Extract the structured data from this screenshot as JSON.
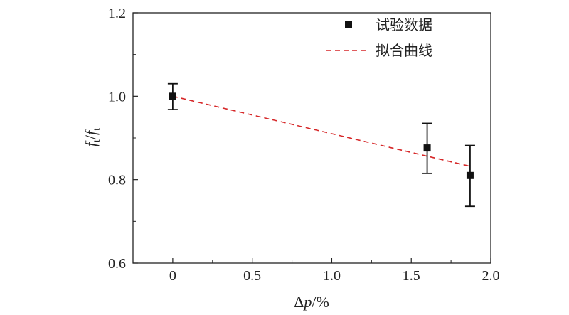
{
  "chart_data": {
    "type": "scatter",
    "xlabel": {
      "main": "Δ",
      "italic": "p",
      "tail": "/%"
    },
    "ylabel": {
      "f1": "f",
      "sub1": "t",
      "slash": "/",
      "f2": "f",
      "sub2": "t",
      "sup2": "r"
    },
    "xlim": [
      -0.25,
      2.0
    ],
    "ylim": [
      0.6,
      1.2
    ],
    "xticks": [
      0,
      0.5,
      1.0,
      1.5,
      2.0
    ],
    "xtick_labels": [
      "0",
      "0.5",
      "1.0",
      "1.5",
      "2.0"
    ],
    "yticks": [
      0.6,
      0.8,
      1.0,
      1.2
    ],
    "ytick_labels": [
      "0.6",
      "0.8",
      "1.0",
      "1.2"
    ],
    "legend_position": "top-right",
    "series": [
      {
        "name": "试验数据",
        "kind": "points-with-error-bars",
        "marker": "square",
        "color": "#111111",
        "points": [
          {
            "x": 0,
            "y": 1.0,
            "err_low": 0.968,
            "err_high": 1.03
          },
          {
            "x": 1.6,
            "y": 0.876,
            "err_low": 0.815,
            "err_high": 0.935
          },
          {
            "x": 1.87,
            "y": 0.81,
            "err_low": 0.736,
            "err_high": 0.882
          }
        ]
      },
      {
        "name": "拟合曲线",
        "kind": "dashed-line",
        "color": "#d62728",
        "points": [
          {
            "x": 0,
            "y": 1.0
          },
          {
            "x": 1.87,
            "y": 0.832
          }
        ]
      }
    ]
  }
}
